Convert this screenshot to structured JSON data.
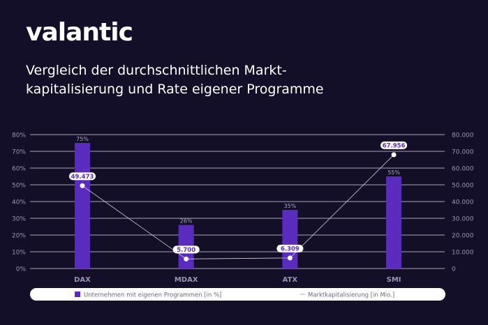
{
  "brand": {
    "logo_text": "valantic"
  },
  "title_lines": [
    "Vergleich der durchschnittlichen Markt-",
    "kapitalisierung und Rate eigener Programme"
  ],
  "colors": {
    "background": "#140f28",
    "bar": "#5b2bc0",
    "line": "#d8d0d0",
    "label_value": "#5b2bc0",
    "grid": "#a9a4b8"
  },
  "chart_data": {
    "type": "bar+line",
    "categories": [
      "DAX",
      "MDAX",
      "ATX",
      "SMI"
    ],
    "series": [
      {
        "name": "Unternehmen mit eigenen Programmen [in %]",
        "type": "bar",
        "axis": "left",
        "values": [
          75,
          26,
          35,
          55
        ],
        "labels": [
          "75%",
          "26%",
          "35%",
          "55%"
        ]
      },
      {
        "name": "Marktkapitalisierung [in Mio.]",
        "type": "line",
        "axis": "right",
        "values": [
          49473,
          5700,
          6309,
          67956
        ],
        "labels": [
          "49.473",
          "5.700",
          "6.309",
          "67.956"
        ]
      }
    ],
    "y_left": {
      "min": 0,
      "max": 80,
      "ticks": [
        "0%",
        "10%",
        "20%",
        "30%",
        "40%",
        "50%",
        "60%",
        "70%",
        "80%"
      ]
    },
    "y_right": {
      "min": 0,
      "max": 80000,
      "ticks": [
        "0",
        "10.000",
        "20.000",
        "30.000",
        "40.000",
        "50.000",
        "60.000",
        "70.000",
        "80.000"
      ]
    },
    "grid": true,
    "legend": "bottom"
  }
}
